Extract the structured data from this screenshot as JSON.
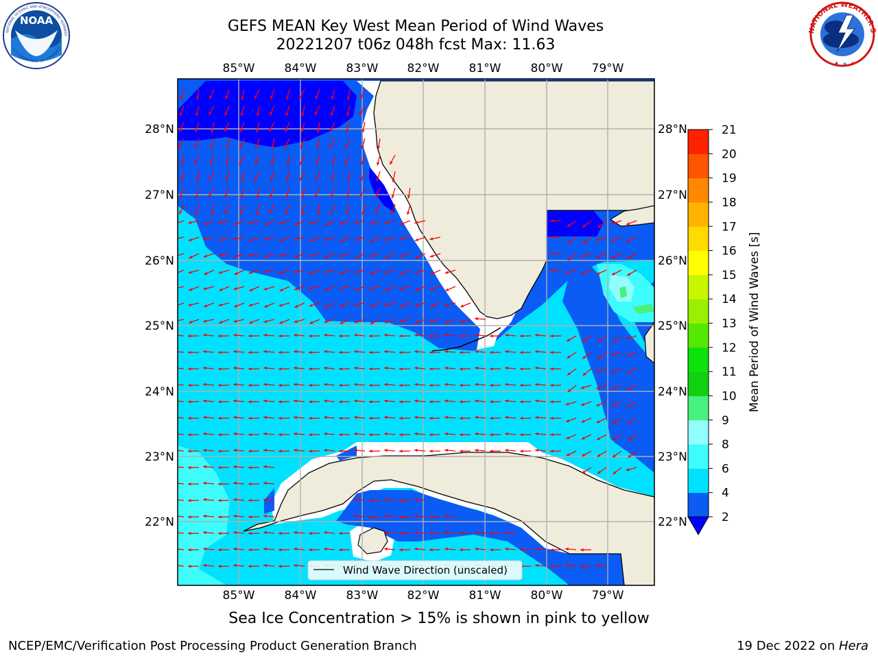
{
  "title": {
    "line1": "GEFS MEAN Key West Mean Period of Wind Waves",
    "line2": "20221207 t06z 048h fcst   Max: 11.63"
  },
  "logos": {
    "left": "noaa-logo",
    "left_text": "NOAA",
    "left_ring_top": "NATIONAL OCEANIC AND ATMOSPHERIC ADMINISTRATION",
    "left_ring_bottom": "U.S. DEPARTMENT OF COMMERCE",
    "right": "national-weather-service-logo",
    "right_ring": "NATIONAL WEATHER SERVICE"
  },
  "map": {
    "region": "Florida Straits / Key West",
    "lon_range": [
      -86.0,
      -78.25
    ],
    "lat_range": [
      21.0,
      28.75
    ],
    "lon_labels": [
      "85°W",
      "84°W",
      "83°W",
      "82°W",
      "81°W",
      "80°W",
      "79°W"
    ],
    "lat_labels": [
      "28°N",
      "27°N",
      "26°N",
      "25°N",
      "24°N",
      "23°N",
      "22°N"
    ],
    "grid": true,
    "land_color": "#efecdc",
    "arrow_color": "#ff0000",
    "legend_label": "Wind Wave Direction (unscaled)",
    "legend_position": "bottom-center"
  },
  "colorbar": {
    "label": "Mean Period of Wind Waves [s]",
    "ticks": [
      2,
      4,
      6,
      8,
      9,
      10,
      11,
      12,
      13,
      14,
      15,
      16,
      17,
      18,
      19,
      20,
      21
    ],
    "colors": [
      "#0a5cf4",
      "#00e1ff",
      "#3ffcfc",
      "#91fdfd",
      "#48f07e",
      "#11d012",
      "#0ce20c",
      "#55e800",
      "#99f000",
      "#c8f500",
      "#ffff00",
      "#ffdb00",
      "#ffb300",
      "#ff8800",
      "#ff5500",
      "#ff2200"
    ],
    "under_color": "#0000ff"
  },
  "subtitle": "Sea Ice Concentration > 15% is shown in pink to yellow",
  "footer": {
    "left": "NCEP/EMC/Verification Post Processing Product Generation Branch",
    "right_date": "19 Dec 2022 on ",
    "right_host": "Hera"
  },
  "chart_data": {
    "type": "map-contour",
    "max_value": 11.63,
    "units": "s",
    "dominant_wave_direction": "toward west-southwest"
  }
}
